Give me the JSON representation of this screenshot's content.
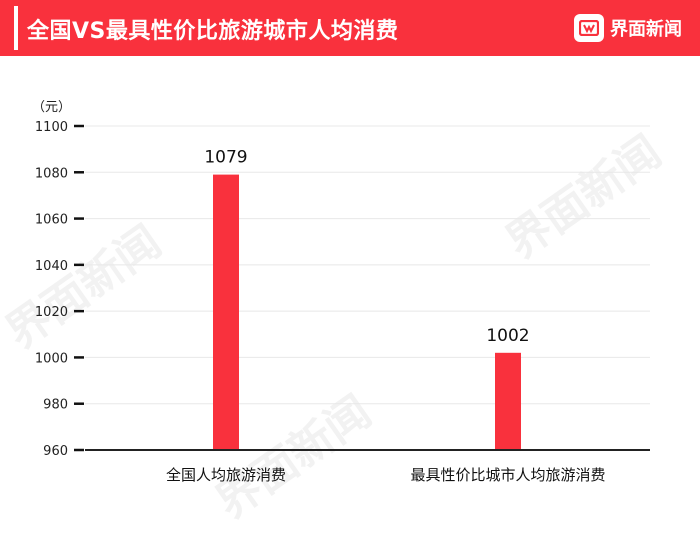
{
  "header": {
    "title": "全国VS最具性价比旅游城市人均消费",
    "brand": "界面新闻",
    "background_color": "#f9313d"
  },
  "watermark": {
    "text": "界面新闻"
  },
  "chart_data": {
    "type": "bar",
    "unit": "（元）",
    "categories": [
      "全国人均旅游消费",
      "最具性价比城市人均旅游消费"
    ],
    "values": [
      1079,
      1002
    ],
    "data_labels": [
      "1079",
      "1002"
    ],
    "ylim": [
      960,
      1100
    ],
    "yticks": [
      960,
      980,
      1000,
      1020,
      1040,
      1060,
      1080,
      1100
    ],
    "bar_color": "#f9313d",
    "grid": true
  }
}
